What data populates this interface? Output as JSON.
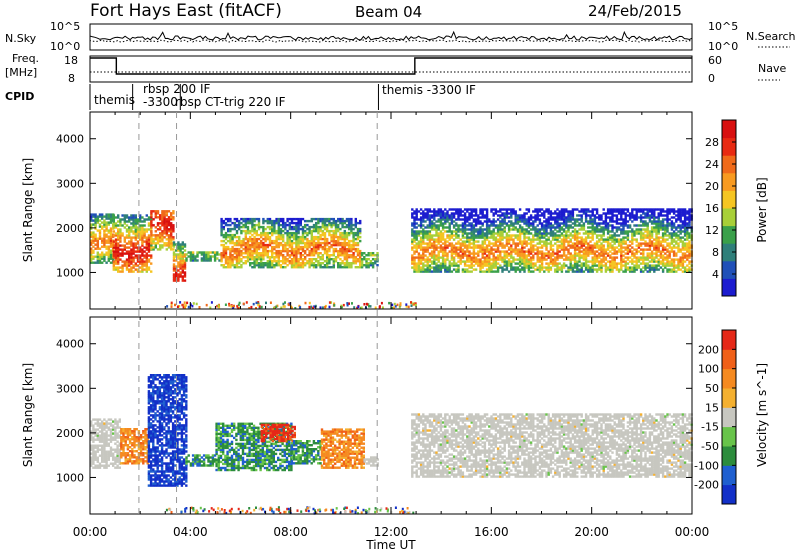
{
  "header": {
    "title": "Fort Hays East (fitACF)",
    "beam": "Beam 04",
    "date": "24/Feb/2015"
  },
  "param_panel": {
    "nsky_label": "N.Sky",
    "nsky_ticks": [
      "10^5",
      "10^0"
    ],
    "nsearch_label": "N.Search",
    "nsearch_ticks": [
      "10^5",
      "10^0"
    ],
    "freq_label": "Freq.",
    "freq_unit": "[MHz]",
    "freq_ticks": [
      "18",
      "8"
    ],
    "nave_label": "Nave",
    "nave_ticks": [
      "60",
      "0"
    ],
    "cpid_label": "CPID",
    "cpid_segments": [
      {
        "start": 0.0,
        "end": 1.7,
        "label": "themis"
      },
      {
        "start": 1.7,
        "end": 3.3,
        "label": "rbsp 200 IF"
      },
      {
        "start": 1.7,
        "end": 3.3,
        "label": "-3300"
      },
      {
        "start": 3.2,
        "end": 3.6,
        "label": "rbsp"
      },
      {
        "start": 3.6,
        "end": 11.5,
        "label": "CT-trig 220 IF"
      },
      {
        "start": 11.5,
        "end": 24.0,
        "label": "themis -3300 IF"
      }
    ]
  },
  "chart_data": [
    {
      "type": "heatmap",
      "name": "power-panel",
      "quantity": "Power",
      "ylabel": "Slant Range [km]",
      "ylim": [
        180,
        4600
      ],
      "yticks": [
        1000,
        2000,
        3000,
        4000
      ],
      "xlim": [
        "00:00",
        "24:00"
      ],
      "colorbar": {
        "label": "Power [dB]",
        "ticks": [
          "4",
          "8",
          "12",
          "16",
          "20",
          "24",
          "28"
        ],
        "colors": [
          "#1c1ccf",
          "#2050b8",
          "#2f7f7a",
          "#3aa04a",
          "#a8cf38",
          "#f5c522",
          "#f89a20",
          "#f06a1a",
          "#e82a12",
          "#d81010"
        ]
      },
      "regions": [
        {
          "t0": 0.0,
          "t1": 0.9,
          "r_lo": 1200,
          "r_hi": 2300,
          "peak_range": 1600,
          "level": "medium"
        },
        {
          "t0": 0.9,
          "t1": 2.4,
          "r_lo": 1000,
          "r_hi": 2300,
          "peak_range": 1500,
          "level": "high"
        },
        {
          "t0": 2.4,
          "t1": 3.3,
          "r_lo": 1500,
          "r_hi": 2400,
          "peak_range": 2000,
          "level": "high"
        },
        {
          "t0": 3.3,
          "t1": 3.8,
          "r_lo": 800,
          "r_hi": 1700,
          "peak_range": 1000,
          "level": "high"
        },
        {
          "t0": 3.8,
          "t1": 5.2,
          "r_lo": 1250,
          "r_hi": 1450,
          "peak_range": 1350,
          "level": "low"
        },
        {
          "t0": 5.2,
          "t1": 10.8,
          "r_lo": 1100,
          "r_hi": 2200,
          "peak_range": 1500,
          "level": "medium"
        },
        {
          "t0": 10.8,
          "t1": 11.5,
          "r_lo": 1100,
          "r_hi": 1450,
          "peak_range": 1300,
          "level": "low"
        },
        {
          "t0": 12.8,
          "t1": 24.0,
          "r_lo": 1000,
          "r_hi": 2400,
          "peak_range": 1450,
          "level": "medium"
        }
      ]
    },
    {
      "type": "heatmap",
      "name": "velocity-panel",
      "quantity": "Velocity",
      "ylabel": "Slant Range [km]",
      "xlabel": "Time UT",
      "ylim": [
        180,
        4600
      ],
      "yticks": [
        1000,
        2000,
        3000,
        4000
      ],
      "xlim": [
        "00:00",
        "24:00"
      ],
      "xticks": [
        "00:00",
        "04:00",
        "08:00",
        "12:00",
        "16:00",
        "20:00",
        "00:00"
      ],
      "colorbar": {
        "label": "Velocity [m s^-1]",
        "ticks": [
          "200",
          "100",
          "50",
          "15",
          "-15",
          "-50",
          "-100",
          "-200"
        ],
        "colors": [
          "#1230c8",
          "#1f5fcf",
          "#2c8c3c",
          "#68c44a",
          "#c7c7c0",
          "#f4b030",
          "#f58a20",
          "#f06018",
          "#e52818"
        ]
      },
      "regions": [
        {
          "t0": 0.0,
          "t1": 1.2,
          "r_lo": 1200,
          "r_hi": 2300,
          "class": "ground"
        },
        {
          "t0": 1.2,
          "t1": 2.3,
          "r_lo": 1300,
          "r_hi": 2100,
          "class": "orange"
        },
        {
          "t0": 2.3,
          "t1": 3.8,
          "r_lo": 800,
          "r_hi": 3300,
          "class": "blue"
        },
        {
          "t0": 3.8,
          "t1": 5.0,
          "r_lo": 1250,
          "r_hi": 1500,
          "class": "green"
        },
        {
          "t0": 5.0,
          "t1": 8.0,
          "r_lo": 1150,
          "r_hi": 2200,
          "class": "green"
        },
        {
          "t0": 6.8,
          "t1": 8.2,
          "r_lo": 1800,
          "r_hi": 2200,
          "class": "red"
        },
        {
          "t0": 8.0,
          "t1": 9.2,
          "r_lo": 1300,
          "r_hi": 1800,
          "class": "green"
        },
        {
          "t0": 9.2,
          "t1": 10.9,
          "r_lo": 1200,
          "r_hi": 2100,
          "class": "orange"
        },
        {
          "t0": 10.9,
          "t1": 11.5,
          "r_lo": 1250,
          "r_hi": 1450,
          "class": "ground"
        },
        {
          "t0": 12.8,
          "t1": 24.0,
          "r_lo": 1000,
          "r_hi": 2400,
          "class": "ground"
        }
      ]
    }
  ],
  "annotations": {
    "dashed_times_ut": [
      1.95,
      3.45,
      11.45
    ]
  }
}
